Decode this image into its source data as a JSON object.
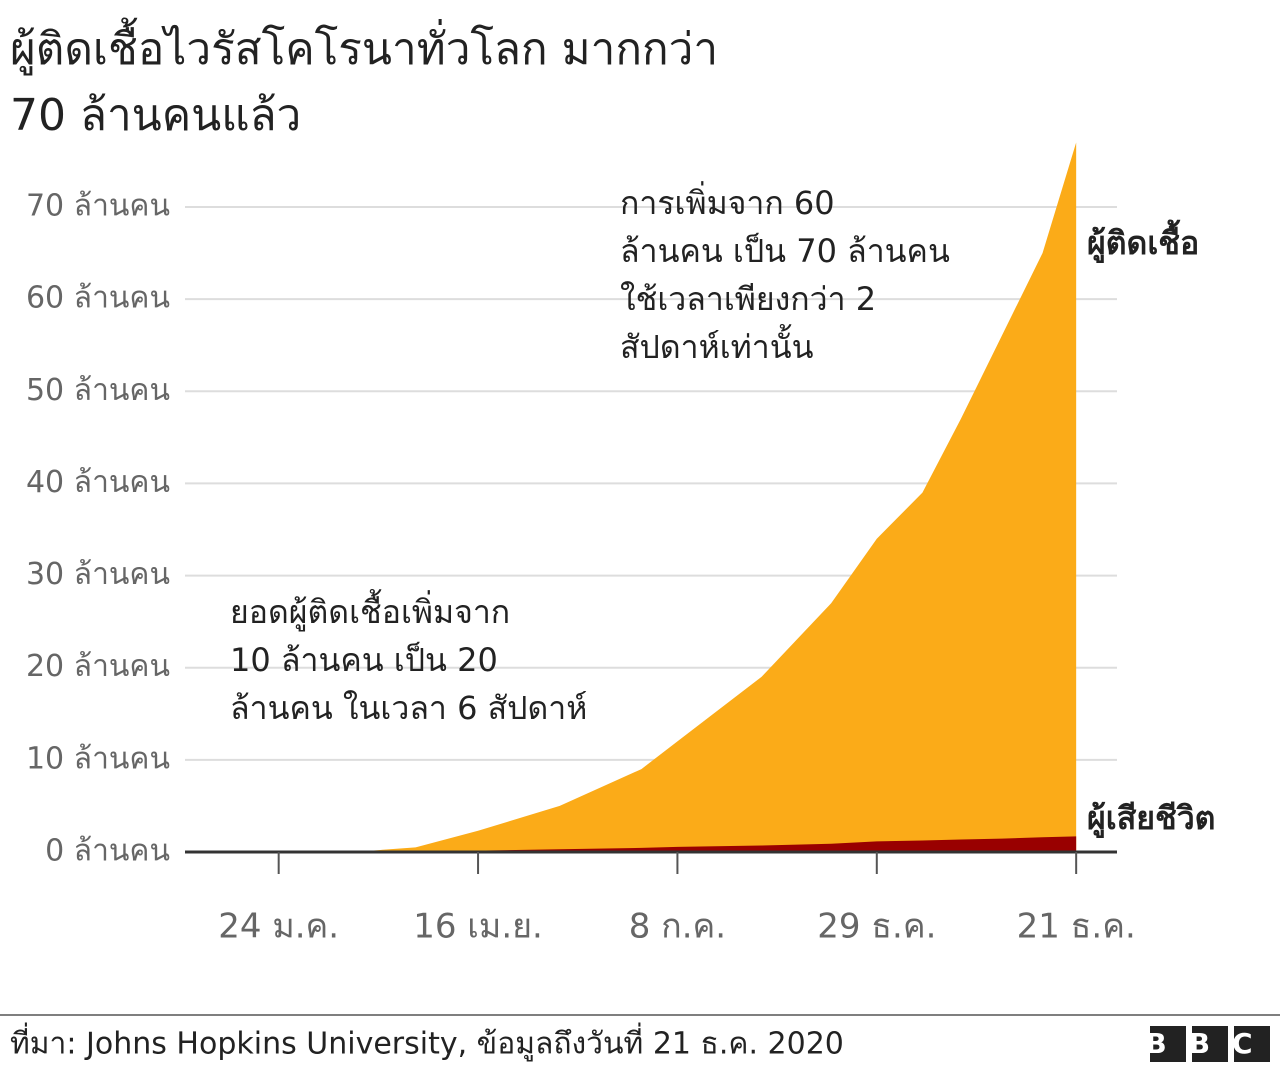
{
  "chart_data": {
    "type": "area",
    "title": [
      "ผู้ติดเชื้อไวรัสโคโรนาทั่วโลก มากกว่า",
      "70 ล้านคนแล้ว"
    ],
    "x": [
      22,
      60,
      81,
      107,
      141,
      175,
      190,
      225,
      254,
      273,
      292,
      308,
      325,
      342,
      356
    ],
    "series": [
      {
        "name": "ผู้ติดเชื้อ",
        "color": "#fbab18",
        "values": [
          0,
          0.1,
          0.5,
          2.3,
          5,
          9,
          12,
          19,
          27,
          34,
          39,
          47,
          56,
          65,
          77
        ]
      },
      {
        "name": "ผู้เสียชีวิต",
        "color": "#990000",
        "values": [
          0,
          0,
          0.03,
          0.15,
          0.3,
          0.45,
          0.55,
          0.7,
          0.9,
          1.15,
          1.25,
          1.35,
          1.45,
          1.6,
          1.7
        ]
      }
    ],
    "xlim": [
      -15,
      373
    ],
    "xticks": [
      {
        "value": 24,
        "label": "24 ม.ค."
      },
      {
        "value": 107,
        "label": "16 เม.ย."
      },
      {
        "value": 190,
        "label": "8 ก.ค."
      },
      {
        "value": 273,
        "label": "29 ธ.ค."
      },
      {
        "value": 356,
        "label": "21 ธ.ค."
      }
    ],
    "ylim": [
      0,
      77
    ],
    "yticks": [
      {
        "value": 0,
        "label": "0 ล้านคน"
      },
      {
        "value": 10,
        "label": "10 ล้านคน"
      },
      {
        "value": 20,
        "label": "20 ล้านคน"
      },
      {
        "value": 30,
        "label": "30 ล้านคน"
      },
      {
        "value": 40,
        "label": "40 ล้านคน"
      },
      {
        "value": 50,
        "label": "50 ล้านคน"
      },
      {
        "value": 60,
        "label": "60 ล้านคน"
      },
      {
        "value": 70,
        "label": "70 ล้านคน"
      }
    ],
    "grid": true,
    "annotations": [
      [
        "การเพิ่มจาก 60",
        "ล้านคน เป็น 70 ล้านคน",
        "ใช้เวลาเพียงกว่า 2",
        "สัปดาห์เท่านั้น"
      ],
      [
        "ยอดผู้ติดเชื้อเพิ่มจาก",
        "10 ล้านคน เป็น 20",
        "ล้านคน ในเวลา 6 สัปดาห์"
      ]
    ],
    "source": "ที่มา: Johns Hopkins University, ข้อมูลถึงวันที่ 21 ธ.ค. 2020",
    "logo": "BBC"
  }
}
